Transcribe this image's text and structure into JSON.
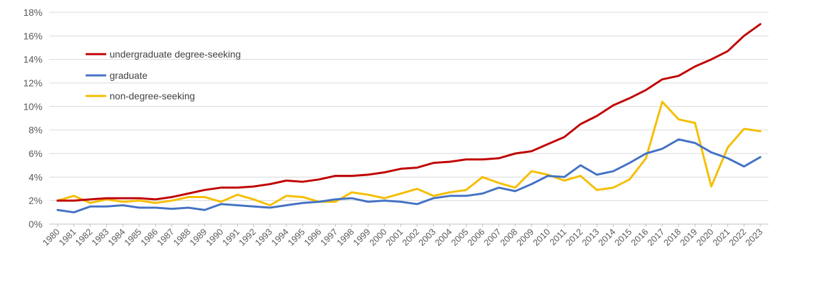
{
  "chart_data": {
    "type": "line",
    "title": "",
    "xlabel": "",
    "ylabel": "",
    "ylim": [
      0,
      18
    ],
    "yticks": [
      "0%",
      "2%",
      "4%",
      "6%",
      "8%",
      "10%",
      "12%",
      "14%",
      "16%",
      "18%"
    ],
    "grid": "horizontal",
    "legend_position": "top-left",
    "x": [
      "1980",
      "1981",
      "1982",
      "1983",
      "1984",
      "1985",
      "1986",
      "1987",
      "1988",
      "1989",
      "1990",
      "1991",
      "1992",
      "1993",
      "1994",
      "1995",
      "1996",
      "1997",
      "1998",
      "1999",
      "2000",
      "2001",
      "2002",
      "2003",
      "2004",
      "2005",
      "2006",
      "2007",
      "2008",
      "2009",
      "2010",
      "2011",
      "2012",
      "2013",
      "2014",
      "2015",
      "2016",
      "2017",
      "2018",
      "2019",
      "2020",
      "2021",
      "2022",
      "2023"
    ],
    "series": [
      {
        "name": "undergraduate degree-seeking",
        "color": "#C00000",
        "values": [
          2.0,
          2.0,
          2.1,
          2.2,
          2.2,
          2.2,
          2.1,
          2.3,
          2.6,
          2.9,
          3.1,
          3.1,
          3.2,
          3.4,
          3.7,
          3.6,
          3.8,
          4.1,
          4.1,
          4.2,
          4.4,
          4.7,
          4.8,
          5.2,
          5.3,
          5.5,
          5.5,
          5.6,
          6.0,
          6.2,
          6.8,
          7.4,
          8.5,
          9.2,
          10.1,
          10.7,
          11.4,
          12.3,
          12.6,
          13.4,
          14.0,
          14.7,
          16.0,
          17.0
        ]
      },
      {
        "name": "graduate",
        "color": "#4472C4",
        "values": [
          1.2,
          1.0,
          1.5,
          1.5,
          1.6,
          1.4,
          1.4,
          1.3,
          1.4,
          1.2,
          1.7,
          1.6,
          1.5,
          1.4,
          1.6,
          1.8,
          1.9,
          2.1,
          2.2,
          1.9,
          2.0,
          1.9,
          1.7,
          2.2,
          2.4,
          2.4,
          2.6,
          3.1,
          2.8,
          3.4,
          4.1,
          4.0,
          5.0,
          4.2,
          4.5,
          5.2,
          6.0,
          6.4,
          7.2,
          6.9,
          6.1,
          5.6,
          4.9,
          5.7
        ]
      },
      {
        "name": "non-degree-seeking",
        "color": "#F5BE00",
        "values": [
          2.0,
          2.4,
          1.8,
          2.1,
          1.9,
          2.0,
          1.8,
          2.0,
          2.3,
          2.3,
          1.9,
          2.5,
          2.1,
          1.6,
          2.4,
          2.3,
          1.9,
          1.9,
          2.7,
          2.5,
          2.2,
          2.6,
          3.0,
          2.4,
          2.7,
          2.9,
          4.0,
          3.5,
          3.1,
          4.5,
          4.2,
          3.7,
          4.1,
          2.9,
          3.1,
          3.8,
          5.6,
          10.4,
          8.9,
          8.6,
          3.2,
          6.5,
          8.1,
          7.9
        ]
      }
    ]
  }
}
